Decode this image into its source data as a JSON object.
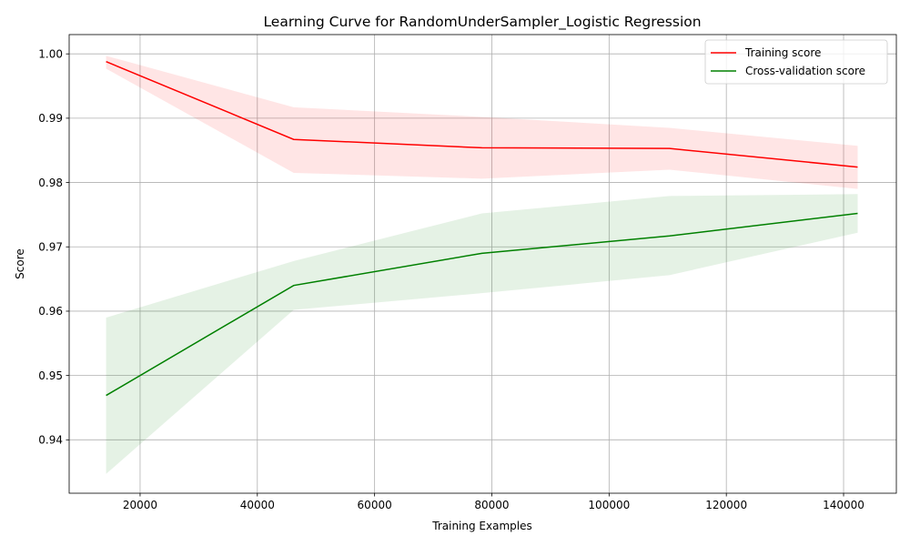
{
  "chart_data": {
    "type": "line",
    "title": "Learning Curve for RandomUnderSampler_Logistic Regression",
    "xlabel": "Training Examples",
    "ylabel": "Score",
    "xlim": [
      7900,
      149000
    ],
    "ylim": [
      0.9317,
      1.003
    ],
    "xticks": [
      20000,
      40000,
      60000,
      80000,
      100000,
      120000,
      140000
    ],
    "xtick_labels": [
      "20000",
      "40000",
      "60000",
      "80000",
      "100000",
      "120000",
      "140000"
    ],
    "yticks": [
      0.94,
      0.95,
      0.96,
      0.97,
      0.98,
      0.99,
      1.0
    ],
    "ytick_labels": [
      "0.94",
      "0.95",
      "0.96",
      "0.97",
      "0.98",
      "0.99",
      "1.00"
    ],
    "grid": true,
    "legend_position": "upper-right",
    "x": [
      14200,
      46200,
      78300,
      110300,
      142400
    ],
    "series": [
      {
        "name": "Training score",
        "color": "#ff0000",
        "band_color": "#ff0000",
        "values": [
          0.9988,
          0.9867,
          0.9854,
          0.9853,
          0.9824
        ],
        "upper": [
          0.9997,
          0.9917,
          0.9902,
          0.9885,
          0.9857
        ],
        "lower": [
          0.9977,
          0.9815,
          0.9806,
          0.982,
          0.979
        ]
      },
      {
        "name": "Cross-validation score",
        "color": "#008000",
        "band_color": "#008000",
        "values": [
          0.9469,
          0.964,
          0.969,
          0.9717,
          0.9752
        ],
        "upper": [
          0.959,
          0.9678,
          0.9752,
          0.9779,
          0.9782
        ],
        "lower": [
          0.9347,
          0.9602,
          0.9628,
          0.9656,
          0.9722
        ]
      }
    ]
  }
}
